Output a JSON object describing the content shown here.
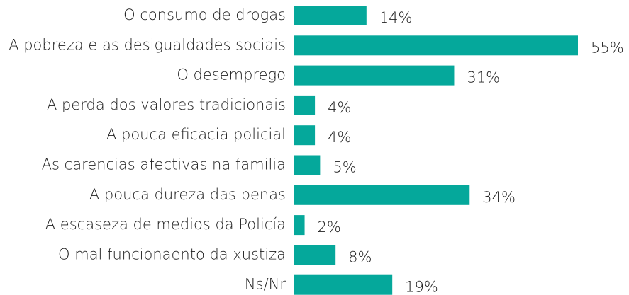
{
  "chart_data": {
    "type": "hbar",
    "categories": [
      "O consumo de drogas",
      "A pobreza e as desigualdades sociais",
      "O desemprego",
      "A perda dos valores tradicionais",
      "A pouca eficacia policial",
      "As carencias afectivas na familia",
      "A pouca dureza das penas",
      "A escaseza de medios da Policía",
      "O mal funcionaento da xustiza",
      "Ns/Nr"
    ],
    "values": [
      14,
      55,
      31,
      4,
      4,
      5,
      34,
      2,
      8,
      19
    ],
    "value_labels": [
      "14%",
      "55%",
      "31%",
      "4%",
      "4%",
      "5%",
      "34%",
      "2%",
      "8%",
      "19%"
    ],
    "color": "#05a89b"
  }
}
